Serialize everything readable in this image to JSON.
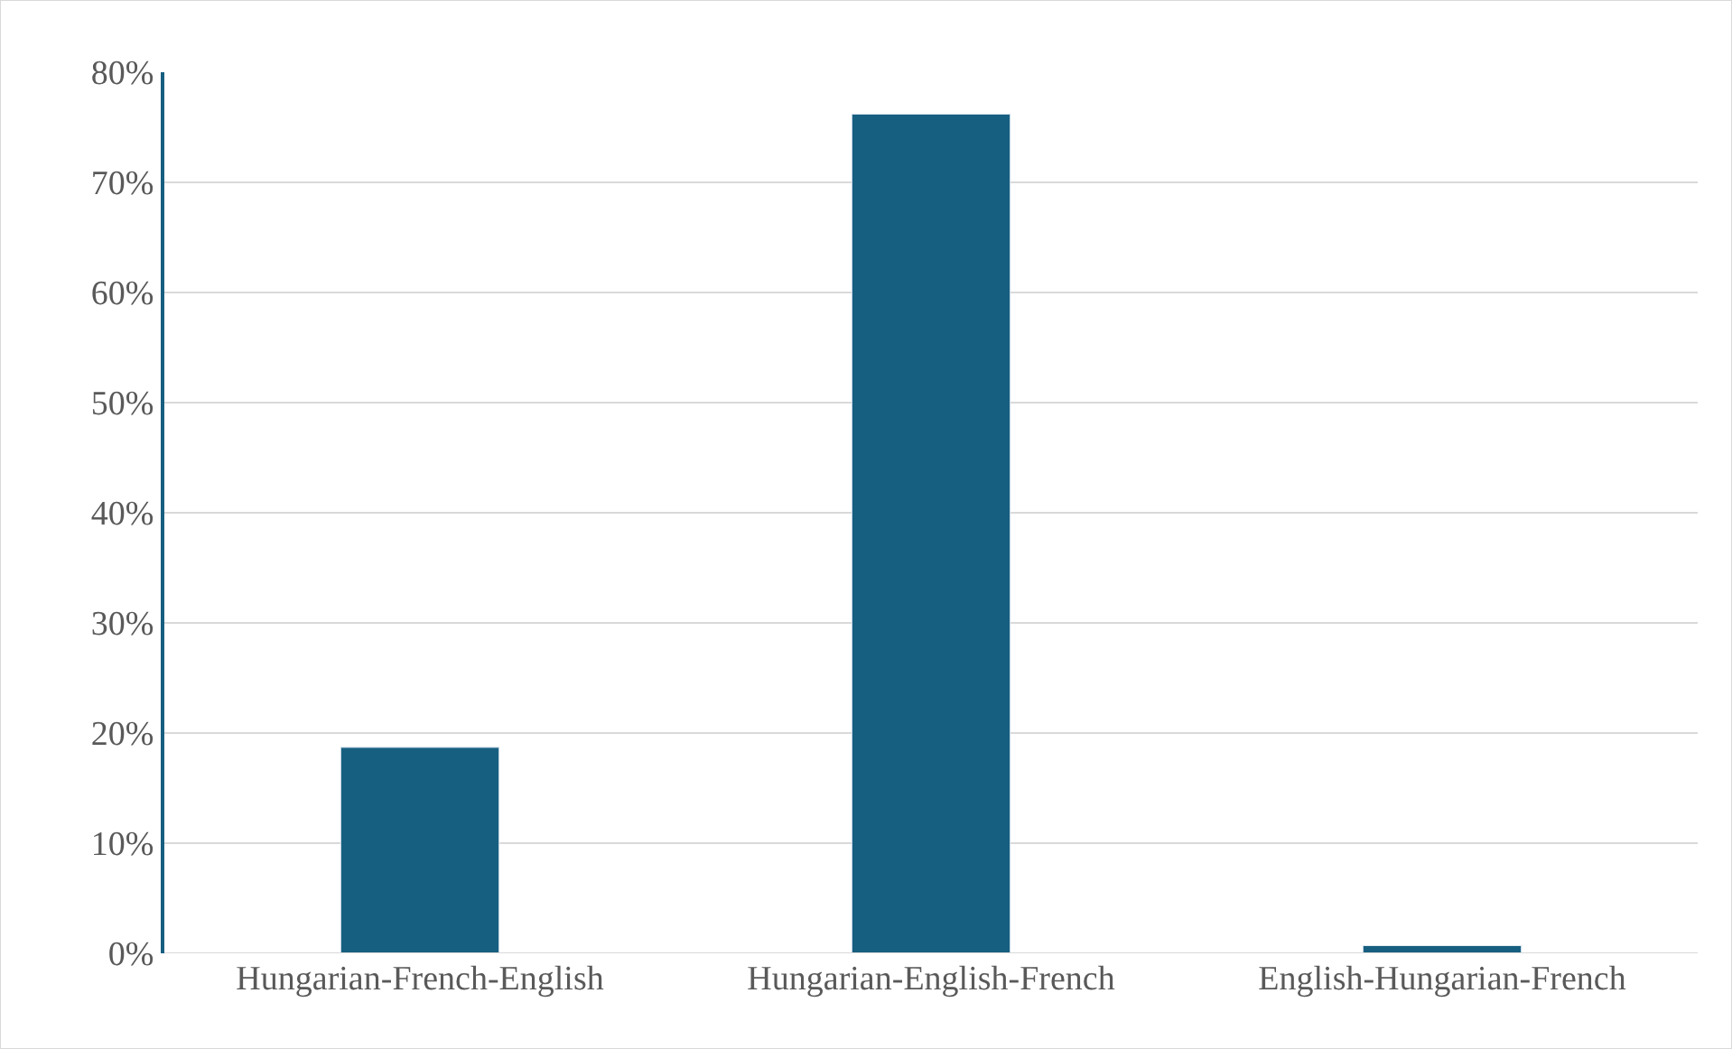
{
  "chart_data": {
    "type": "bar",
    "categories": [
      "Hungarian-French-English",
      "Hungarian-English-French",
      "English-Hungarian-French"
    ],
    "values": [
      18.7,
      76.2,
      0.7
    ],
    "color": "#175f80",
    "ylim": [
      0,
      80
    ],
    "yticks": [
      {
        "value": 0,
        "label": "0%"
      },
      {
        "value": 10,
        "label": "10%"
      },
      {
        "value": 20,
        "label": "20%"
      },
      {
        "value": 30,
        "label": "30%"
      },
      {
        "value": 40,
        "label": "40%"
      },
      {
        "value": 50,
        "label": "50%"
      },
      {
        "value": 60,
        "label": "60%"
      },
      {
        "value": 70,
        "label": "70%"
      },
      {
        "value": 80,
        "label": "80%"
      }
    ],
    "grid": "y",
    "legend": false
  }
}
